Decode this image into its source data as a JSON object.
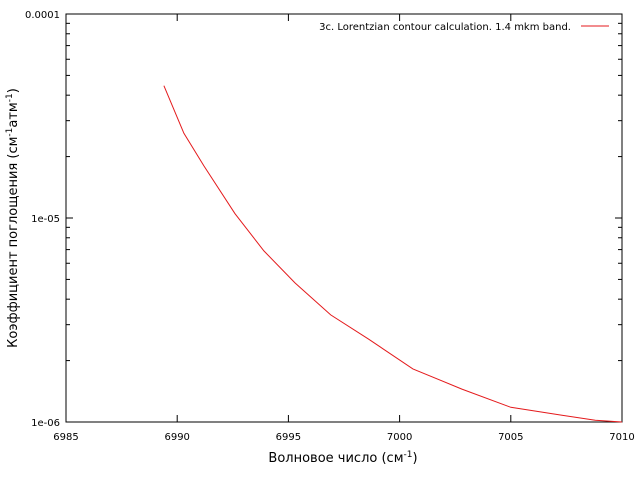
{
  "chart_data": {
    "type": "line",
    "title": "",
    "xlabel": "Волновое число (см⁻¹)",
    "ylabel": "Коэффициент поглощения (см⁻¹атм⁻¹)",
    "xlabel_parts": {
      "main": "Волновое число (см",
      "sup": "-1",
      "tail": ")"
    },
    "ylabel_parts": {
      "main": "Коэффициент поглощения (см",
      "sup1": "-1",
      "mid": "атм",
      "sup2": "-1",
      "tail": ")"
    },
    "xlim": [
      6985,
      7010
    ],
    "ylim": [
      1e-06,
      0.0001
    ],
    "yscale": "log",
    "grid": false,
    "legend_position": "top-right",
    "x_ticks": [
      6985,
      6990,
      6995,
      7000,
      7005,
      7010
    ],
    "x_tick_labels": [
      "6985",
      "6990",
      "6995",
      "7000",
      "7005",
      "7010"
    ],
    "y_ticks": [
      1e-06,
      1e-05,
      0.0001
    ],
    "y_tick_labels": [
      "1e-06",
      "1e-05",
      "0.0001"
    ],
    "series": [
      {
        "name": "3c. Lorentzian contour calculation.  1.4 mkm band.",
        "color": "#e41a1c",
        "x": [
          6989.4,
          6990.3,
          6991.2,
          6992.6,
          6993.9,
          6995.3,
          6996.9,
          6998.6,
          7000.6,
          7002.8,
          7005.0,
          7007.3,
          7008.8,
          7010.0
        ],
        "y": [
          4.45e-05,
          2.6e-05,
          1.8e-05,
          1.05e-05,
          6.9e-06,
          4.8e-06,
          3.35e-06,
          2.55e-06,
          1.82e-06,
          1.45e-06,
          1.18e-06,
          1.08e-06,
          1.02e-06,
          1e-06
        ]
      }
    ]
  }
}
